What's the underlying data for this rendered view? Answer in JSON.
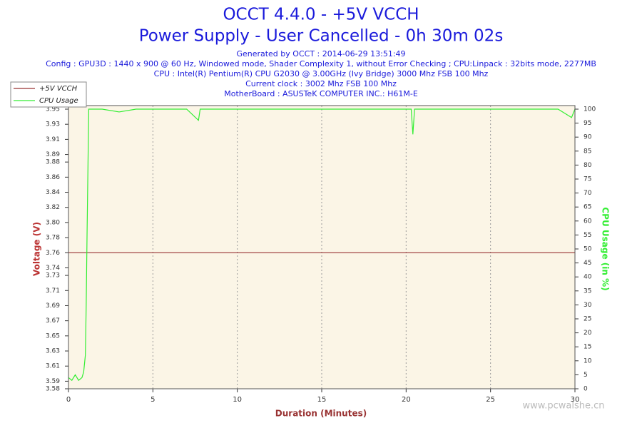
{
  "chart_data": {
    "type": "line",
    "title": "OCCT 4.4.0 - +5V VCCH",
    "subtitle": "Power Supply - User Cancelled - 0h 30m 02s",
    "info_lines": [
      "Generated by OCCT : 2014-06-29 13:51:49",
      "Config : GPU3D : 1440 x 900 @ 60 Hz, Windowed mode, Shader Complexity 1, without Error Checking ; CPU:Linpack : 32bits mode, 2277MB",
      "CPU : Intel(R) Pentium(R) CPU G2030 @ 3.00GHz (Ivy Bridge) 3000 Mhz FSB 100 Mhz",
      "Current clock : 3002 Mhz FSB 100 Mhz",
      "MotherBoard : ASUSTeK COMPUTER INC.: H61M-E"
    ],
    "xlabel": "Duration (Minutes)",
    "ylabel": "Voltage (V)",
    "y2label": "CPU Usage (in %)",
    "watermark": "www.pcwalshe.cn",
    "x": [
      0,
      0.2,
      0.4,
      0.6,
      0.8,
      0.9,
      1.0,
      1.05,
      1.1,
      1.2,
      2,
      3,
      4,
      5,
      6,
      7,
      7.7,
      7.8,
      8,
      10,
      12,
      14,
      16,
      18,
      20,
      20.3,
      20.4,
      20.5,
      21,
      23,
      25,
      27,
      29,
      29.8,
      30
    ],
    "series": [
      {
        "name": "+5V VCCH",
        "color": "#993333",
        "axis": "y",
        "values": [
          3.76,
          3.76,
          3.76,
          3.76,
          3.76,
          3.76,
          3.76,
          3.76,
          3.76,
          3.76,
          3.76,
          3.76,
          3.76,
          3.76,
          3.76,
          3.76,
          3.76,
          3.76,
          3.76,
          3.76,
          3.76,
          3.76,
          3.76,
          3.76,
          3.76,
          3.76,
          3.76,
          3.76,
          3.76,
          3.76,
          3.76,
          3.76,
          3.76,
          3.76,
          3.76
        ]
      },
      {
        "name": "CPU Usage",
        "color": "#33ee33",
        "axis": "y2",
        "values": [
          4,
          3,
          5,
          3,
          4,
          6,
          12,
          30,
          55,
          100,
          100,
          99,
          100,
          100,
          100,
          100,
          96,
          100,
          100,
          100,
          100,
          100,
          100,
          100,
          100,
          100,
          91,
          100,
          100,
          100,
          100,
          100,
          100,
          97,
          100
        ]
      }
    ],
    "xlim": [
      0,
      30
    ],
    "xticks": [
      0,
      5,
      10,
      15,
      20,
      25,
      30
    ],
    "ylim": [
      3.58,
      3.95
    ],
    "yticks": [
      3.58,
      3.59,
      3.61,
      3.63,
      3.65,
      3.67,
      3.69,
      3.71,
      3.73,
      3.74,
      3.76,
      3.78,
      {
        "value": 3.8,
        "label": "3.80"
      },
      3.82,
      3.84,
      3.86,
      3.88,
      3.89,
      3.91,
      3.93,
      3.95
    ],
    "y2lim": [
      0,
      100
    ],
    "y2ticks": [
      0,
      5,
      10,
      15,
      20,
      25,
      30,
      35,
      40,
      45,
      50,
      55,
      60,
      65,
      70,
      75,
      80,
      85,
      90,
      95,
      100
    ],
    "grid": true,
    "legend": "upper left"
  }
}
